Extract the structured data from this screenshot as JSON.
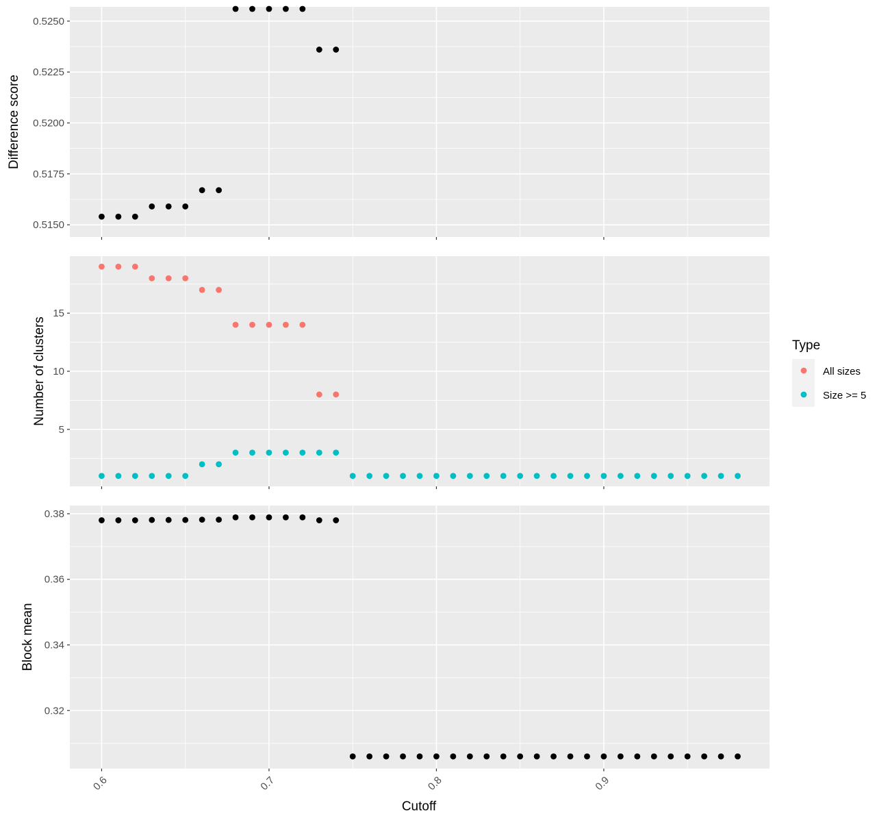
{
  "chart_data": [
    {
      "type": "scatter",
      "panel": "top",
      "ylabel": "Difference score",
      "y_ticks": [
        "0.5150",
        "0.5175",
        "0.5200",
        "0.5225",
        "0.5250"
      ],
      "ylim": [
        0.5144,
        0.5257
      ],
      "series": [
        {
          "color": "#000000",
          "x": [
            0.6,
            0.61,
            0.62,
            0.63,
            0.64,
            0.65,
            0.66,
            0.67,
            0.68,
            0.69,
            0.7,
            0.71,
            0.72,
            0.73,
            0.74
          ],
          "y": [
            0.5154,
            0.5154,
            0.5154,
            0.5159,
            0.5159,
            0.5159,
            0.5167,
            0.5167,
            0.5256,
            0.5256,
            0.5256,
            0.5256,
            0.5256,
            0.5236,
            0.5236
          ]
        }
      ]
    },
    {
      "type": "scatter",
      "panel": "middle",
      "ylabel": "Number of clusters",
      "y_ticks": [
        "5",
        "10",
        "15"
      ],
      "ylim": [
        0.1,
        19.9
      ],
      "series": [
        {
          "name": "All sizes",
          "color": "#F8766D",
          "x": [
            0.6,
            0.61,
            0.62,
            0.63,
            0.64,
            0.65,
            0.66,
            0.67,
            0.68,
            0.69,
            0.7,
            0.71,
            0.72,
            0.73,
            0.74
          ],
          "y": [
            19,
            19,
            19,
            18,
            18,
            18,
            17,
            17,
            14,
            14,
            14,
            14,
            14,
            8,
            8
          ]
        },
        {
          "name": "Size >= 5",
          "color": "#00BFC4",
          "x": [
            0.6,
            0.61,
            0.62,
            0.63,
            0.64,
            0.65,
            0.66,
            0.67,
            0.68,
            0.69,
            0.7,
            0.71,
            0.72,
            0.73,
            0.74,
            0.75,
            0.76,
            0.77,
            0.78,
            0.79,
            0.8,
            0.81,
            0.82,
            0.83,
            0.84,
            0.85,
            0.86,
            0.87,
            0.88,
            0.89,
            0.9,
            0.91,
            0.92,
            0.93,
            0.94,
            0.95,
            0.96,
            0.97,
            0.98
          ],
          "y": [
            1,
            1,
            1,
            1,
            1,
            1,
            2,
            2,
            3,
            3,
            3,
            3,
            3,
            3,
            3,
            1,
            1,
            1,
            1,
            1,
            1,
            1,
            1,
            1,
            1,
            1,
            1,
            1,
            1,
            1,
            1,
            1,
            1,
            1,
            1,
            1,
            1,
            1,
            1
          ]
        }
      ]
    },
    {
      "type": "scatter",
      "panel": "bottom",
      "ylabel": "Block mean",
      "y_ticks": [
        "0.32",
        "0.34",
        "0.36",
        "0.38"
      ],
      "ylim": [
        0.3023,
        0.3825
      ],
      "series": [
        {
          "color": "#000000",
          "x": [
            0.6,
            0.61,
            0.62,
            0.63,
            0.64,
            0.65,
            0.66,
            0.67,
            0.68,
            0.69,
            0.7,
            0.71,
            0.72,
            0.73,
            0.74,
            0.75,
            0.76,
            0.77,
            0.78,
            0.79,
            0.8,
            0.81,
            0.82,
            0.83,
            0.84,
            0.85,
            0.86,
            0.87,
            0.88,
            0.89,
            0.9,
            0.91,
            0.92,
            0.93,
            0.94,
            0.95,
            0.96,
            0.97,
            0.98
          ],
          "y": [
            0.378,
            0.378,
            0.378,
            0.3781,
            0.3781,
            0.3781,
            0.3782,
            0.3782,
            0.3789,
            0.3789,
            0.3789,
            0.3789,
            0.3789,
            0.378,
            0.378,
            0.306,
            0.306,
            0.306,
            0.306,
            0.306,
            0.306,
            0.306,
            0.306,
            0.306,
            0.306,
            0.306,
            0.306,
            0.306,
            0.306,
            0.306,
            0.306,
            0.306,
            0.306,
            0.306,
            0.306,
            0.306,
            0.306,
            0.306,
            0.306
          ]
        }
      ]
    }
  ],
  "x_axis": {
    "title": "Cutoff",
    "ticks": [
      "0.6",
      "0.7",
      "0.8",
      "0.9"
    ],
    "xlim": [
      0.581,
      0.999
    ]
  },
  "legend": {
    "title": "Type",
    "placement": "right",
    "entries": [
      {
        "label": "All sizes",
        "color": "#F8766D"
      },
      {
        "label": "Size >= 5",
        "color": "#00BFC4"
      }
    ]
  },
  "style": {
    "panel_background": "#EBEBEB",
    "grid_color": "#FFFFFF",
    "grid": true
  }
}
